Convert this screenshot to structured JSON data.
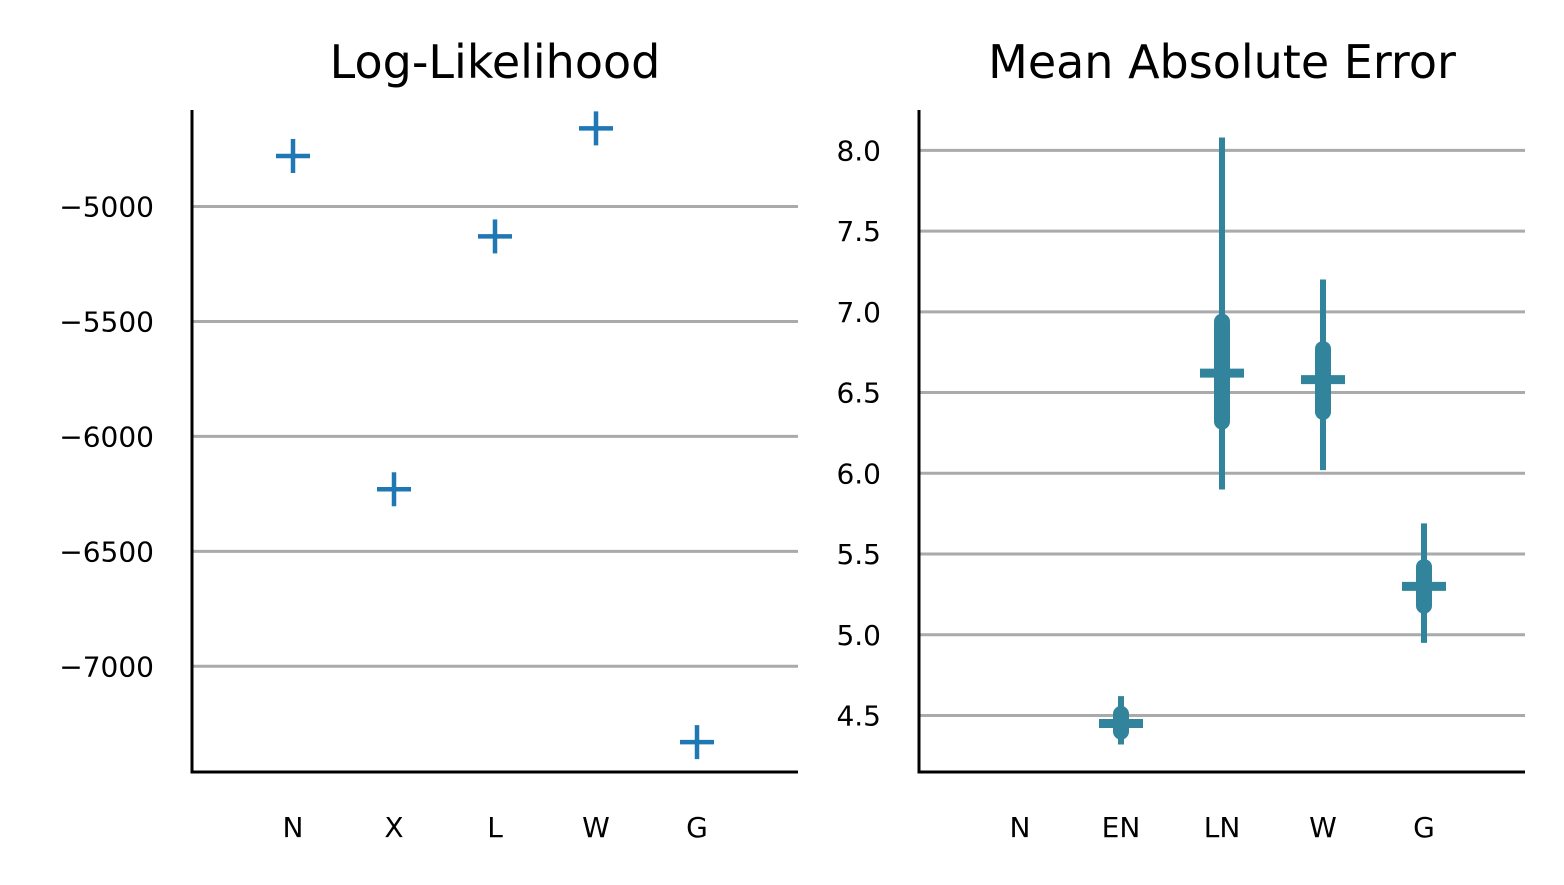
{
  "chart_data": [
    {
      "type": "scatter",
      "title": "Log-Likelihood",
      "categories": [
        "N",
        "X",
        "L",
        "W",
        "G"
      ],
      "values": [
        -4780,
        -6230,
        -5130,
        -4660,
        -7330
      ],
      "ylim": [
        -7460,
        -4580
      ],
      "yticks": [
        -5000,
        -5500,
        -6000,
        -6500,
        -7000
      ],
      "ytick_labels": [
        "−5000",
        "−5500",
        "−6000",
        "−6500",
        "−7000"
      ],
      "grid": "horizontal",
      "marker": "plus",
      "color": "#1f77b4"
    },
    {
      "type": "scatter",
      "title": "Mean Absolute Error",
      "categories": [
        "N",
        "EN",
        "LN",
        "W",
        "G"
      ],
      "series": [
        {
          "values": [
            null,
            4.45,
            6.62,
            6.58,
            5.3
          ],
          "inner_range": [
            null,
            [
              4.4,
              4.51
            ],
            [
              6.32,
              6.94
            ],
            [
              6.38,
              6.77
            ],
            [
              5.18,
              5.42
            ]
          ],
          "outer_range": [
            null,
            [
              4.32,
              4.62
            ],
            [
              5.9,
              8.08
            ],
            [
              6.02,
              7.2
            ],
            [
              4.95,
              5.69
            ]
          ]
        }
      ],
      "ylim": [
        4.15,
        8.25
      ],
      "yticks": [
        4.5,
        5.0,
        5.5,
        6.0,
        6.5,
        7.0,
        7.5,
        8.0
      ],
      "ytick_labels": [
        "4.5",
        "5.0",
        "5.5",
        "6.0",
        "6.5",
        "7.0",
        "7.5",
        "8.0"
      ],
      "grid": "horizontal",
      "marker": "plus",
      "color": "#31849b"
    }
  ]
}
